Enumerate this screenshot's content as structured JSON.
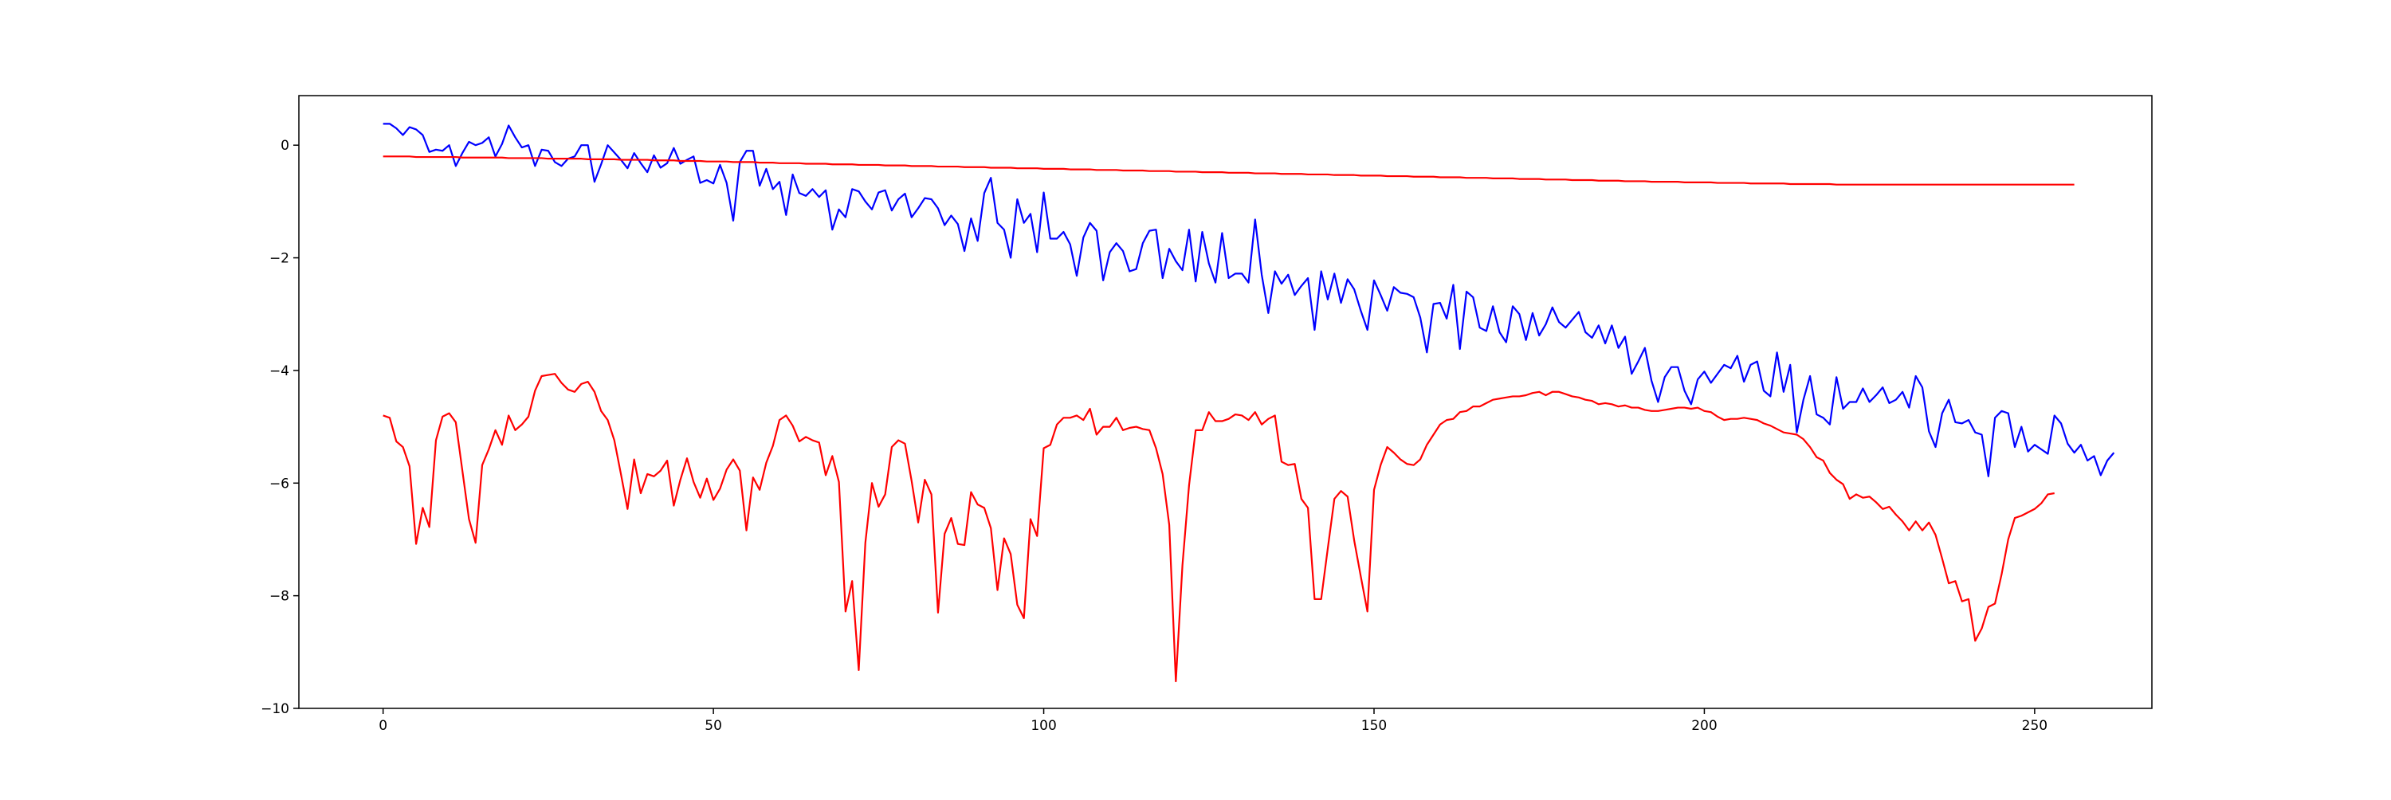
{
  "chart_data": {
    "type": "line",
    "title": "",
    "xlabel": "",
    "ylabel": "",
    "xlim": [
      -12.75,
      267.75
    ],
    "ylim": [
      -10,
      0.88
    ],
    "grid": false,
    "legend": "none",
    "x_ticks": [
      0,
      50,
      100,
      150,
      200,
      250
    ],
    "x_tick_labels": [
      "0",
      "50",
      "100",
      "150",
      "200",
      "250"
    ],
    "y_ticks": [
      0,
      -2,
      -4,
      -6,
      -8,
      -10
    ],
    "y_tick_labels": [
      "0",
      "−2",
      "−4",
      "−6",
      "−8",
      "−10"
    ],
    "colors": {
      "blue": "#0000ff",
      "red": "#ff0000",
      "axes": "#000000"
    },
    "series": [
      {
        "color": "#0000ff",
        "x_start": 0,
        "x_step": 1,
        "values": [
          0.38,
          0.38,
          0.3,
          0.18,
          0.32,
          0.28,
          0.18,
          -0.12,
          -0.08,
          -0.1,
          0.0,
          -0.37,
          -0.14,
          0.06,
          0.0,
          0.04,
          0.14,
          -0.2,
          0.02,
          0.35,
          0.14,
          -0.04,
          0.0,
          -0.37,
          -0.08,
          -0.1,
          -0.3,
          -0.37,
          -0.24,
          -0.2,
          0.0,
          0.0,
          -0.65,
          -0.34,
          0.0,
          -0.13,
          -0.26,
          -0.41,
          -0.14,
          -0.32,
          -0.48,
          -0.18,
          -0.4,
          -0.32,
          -0.05,
          -0.33,
          -0.26,
          -0.2,
          -0.67,
          -0.62,
          -0.68,
          -0.35,
          -0.67,
          -1.34,
          -0.3,
          -0.1,
          -0.1,
          -0.72,
          -0.42,
          -0.78,
          -0.65,
          -1.24,
          -0.52,
          -0.85,
          -0.9,
          -0.78,
          -0.92,
          -0.8,
          -1.5,
          -1.14,
          -1.28,
          -0.78,
          -0.82,
          -1.0,
          -1.14,
          -0.84,
          -0.8,
          -1.16,
          -0.96,
          -0.86,
          -1.28,
          -1.12,
          -0.94,
          -0.96,
          -1.12,
          -1.42,
          -1.25,
          -1.4,
          -1.88,
          -1.3,
          -1.7,
          -0.85,
          -0.58,
          -1.38,
          -1.5,
          -2.0,
          -0.96,
          -1.38,
          -1.22,
          -1.9,
          -0.84,
          -1.66,
          -1.66,
          -1.54,
          -1.76,
          -2.32,
          -1.64,
          -1.38,
          -1.52,
          -2.4,
          -1.9,
          -1.74,
          -1.88,
          -2.24,
          -2.2,
          -1.74,
          -1.52,
          -1.5,
          -2.36,
          -1.84,
          -2.06,
          -2.22,
          -1.5,
          -2.42,
          -1.54,
          -2.1,
          -2.44,
          -1.56,
          -2.36,
          -2.28,
          -2.28,
          -2.44,
          -1.32,
          -2.3,
          -2.98,
          -2.24,
          -2.46,
          -2.3,
          -2.66,
          -2.5,
          -2.36,
          -3.28,
          -2.24,
          -2.74,
          -2.28,
          -2.8,
          -2.38,
          -2.56,
          -2.94,
          -3.28,
          -2.4,
          -2.66,
          -2.94,
          -2.52,
          -2.62,
          -2.64,
          -2.7,
          -3.06,
          -3.68,
          -2.82,
          -2.8,
          -3.08,
          -2.48,
          -3.62,
          -2.6,
          -2.7,
          -3.24,
          -3.3,
          -2.86,
          -3.32,
          -3.5,
          -2.86,
          -3.0,
          -3.46,
          -2.98,
          -3.38,
          -3.18,
          -2.88,
          -3.14,
          -3.24,
          -3.1,
          -2.96,
          -3.32,
          -3.42,
          -3.2,
          -3.52,
          -3.2,
          -3.6,
          -3.4,
          -4.06,
          -3.84,
          -3.6,
          -4.18,
          -4.56,
          -4.12,
          -3.94,
          -3.94,
          -4.36,
          -4.6,
          -4.16,
          -4.02,
          -4.22,
          -4.06,
          -3.9,
          -3.96,
          -3.74,
          -4.2,
          -3.9,
          -3.84,
          -4.36,
          -4.46,
          -3.68,
          -4.38,
          -3.9,
          -5.1,
          -4.52,
          -4.1,
          -4.78,
          -4.84,
          -4.96,
          -4.12,
          -4.68,
          -4.56,
          -4.56,
          -4.32,
          -4.56,
          -4.44,
          -4.3,
          -4.58,
          -4.52,
          -4.38,
          -4.66,
          -4.1,
          -4.3,
          -5.08,
          -5.36,
          -4.76,
          -4.52,
          -4.92,
          -4.94,
          -4.88,
          -5.1,
          -5.14,
          -5.88,
          -4.84,
          -4.72,
          -4.76,
          -5.36,
          -5.0,
          -5.44,
          -5.32,
          -5.4,
          -5.48,
          -4.8,
          -4.94,
          -5.3,
          -5.46,
          -5.32,
          -5.6,
          -5.52,
          -5.86,
          -5.6,
          -5.46
        ]
      },
      {
        "color": "#ff0000",
        "x_start": 0,
        "x_step": 1,
        "values": [
          -4.8,
          -4.84,
          -5.26,
          -5.36,
          -5.7,
          -7.08,
          -6.44,
          -6.78,
          -5.24,
          -4.82,
          -4.76,
          -4.92,
          -5.78,
          -6.64,
          -7.06,
          -5.68,
          -5.4,
          -5.06,
          -5.32,
          -4.8,
          -5.06,
          -4.96,
          -4.82,
          -4.36,
          -4.1,
          -4.08,
          -4.06,
          -4.22,
          -4.34,
          -4.38,
          -4.24,
          -4.2,
          -4.38,
          -4.72,
          -4.88,
          -5.24,
          -5.84,
          -6.46,
          -5.58,
          -6.18,
          -5.84,
          -5.88,
          -5.78,
          -5.6,
          -6.4,
          -5.94,
          -5.56,
          -5.98,
          -6.26,
          -5.92,
          -6.3,
          -6.1,
          -5.76,
          -5.58,
          -5.78,
          -6.84,
          -5.9,
          -6.12,
          -5.64,
          -5.34,
          -4.88,
          -4.8,
          -4.98,
          -5.26,
          -5.18,
          -5.24,
          -5.28,
          -5.86,
          -5.52,
          -5.98,
          -8.28,
          -7.74,
          -9.32,
          -7.06,
          -6.0,
          -6.42,
          -6.2,
          -5.36,
          -5.24,
          -5.3,
          -5.96,
          -6.7,
          -5.94,
          -6.2,
          -8.3,
          -6.9,
          -6.62,
          -7.08,
          -7.1,
          -6.16,
          -6.38,
          -6.44,
          -6.8,
          -7.9,
          -6.98,
          -7.26,
          -8.16,
          -8.4,
          -6.64,
          -6.94,
          -5.38,
          -5.32,
          -4.96,
          -4.84,
          -4.84,
          -4.8,
          -4.88,
          -4.68,
          -5.14,
          -5.0,
          -5.0,
          -4.84,
          -5.06,
          -5.02,
          -5.0,
          -5.04,
          -5.06,
          -5.38,
          -5.84,
          -6.74,
          -9.52,
          -7.46,
          -6.04,
          -5.06,
          -5.06,
          -4.74,
          -4.9,
          -4.9,
          -4.86,
          -4.78,
          -4.8,
          -4.88,
          -4.74,
          -4.96,
          -4.86,
          -4.8,
          -5.62,
          -5.68,
          -5.66,
          -6.28,
          -6.44,
          -8.06,
          -8.06,
          -7.16,
          -6.28,
          -6.14,
          -6.24,
          -7.02,
          -7.66,
          -8.28,
          -6.12,
          -5.68,
          -5.36,
          -5.46,
          -5.58,
          -5.66,
          -5.68,
          -5.58,
          -5.32,
          -5.14,
          -4.96,
          -4.88,
          -4.86,
          -4.74,
          -4.72,
          -4.64,
          -4.64,
          -4.58,
          -4.52,
          -4.5,
          -4.48,
          -4.46,
          -4.46,
          -4.44,
          -4.4,
          -4.38,
          -4.44,
          -4.38,
          -4.38,
          -4.42,
          -4.46,
          -4.48,
          -4.52,
          -4.54,
          -4.6,
          -4.58,
          -4.6,
          -4.64,
          -4.62,
          -4.66,
          -4.66,
          -4.7,
          -4.72,
          -4.72,
          -4.7,
          -4.68,
          -4.66,
          -4.66,
          -4.68,
          -4.66,
          -4.72,
          -4.74,
          -4.82,
          -4.88,
          -4.86,
          -4.86,
          -4.84,
          -4.86,
          -4.88,
          -4.94,
          -4.98,
          -5.04,
          -5.1,
          -5.12,
          -5.14,
          -5.22,
          -5.36,
          -5.54,
          -5.6,
          -5.82,
          -5.94,
          -6.02,
          -6.28,
          -6.2,
          -6.26,
          -6.24,
          -6.34,
          -6.46,
          -6.42,
          -6.56,
          -6.68,
          -6.84,
          -6.68,
          -6.84,
          -6.7,
          -6.92,
          -7.34,
          -7.78,
          -7.74,
          -8.1,
          -8.06,
          -8.8,
          -8.58,
          -8.2,
          -8.14,
          -7.62,
          -7.0,
          -6.62,
          -6.58,
          -6.52,
          -6.46,
          -6.36,
          -6.2,
          -6.18
        ]
      },
      {
        "color": "#ff0000",
        "x_start": 0,
        "x_step": 1,
        "values": [
          -0.2,
          -0.2,
          -0.2,
          -0.2,
          -0.2,
          -0.21,
          -0.21,
          -0.21,
          -0.21,
          -0.21,
          -0.21,
          -0.21,
          -0.22,
          -0.22,
          -0.22,
          -0.22,
          -0.22,
          -0.22,
          -0.22,
          -0.23,
          -0.23,
          -0.23,
          -0.23,
          -0.23,
          -0.23,
          -0.24,
          -0.24,
          -0.24,
          -0.24,
          -0.24,
          -0.24,
          -0.25,
          -0.25,
          -0.25,
          -0.25,
          -0.25,
          -0.26,
          -0.26,
          -0.26,
          -0.26,
          -0.26,
          -0.27,
          -0.27,
          -0.27,
          -0.27,
          -0.28,
          -0.28,
          -0.28,
          -0.28,
          -0.29,
          -0.29,
          -0.29,
          -0.29,
          -0.3,
          -0.3,
          -0.3,
          -0.3,
          -0.31,
          -0.31,
          -0.31,
          -0.32,
          -0.32,
          -0.32,
          -0.32,
          -0.33,
          -0.33,
          -0.33,
          -0.33,
          -0.34,
          -0.34,
          -0.34,
          -0.34,
          -0.35,
          -0.35,
          -0.35,
          -0.35,
          -0.36,
          -0.36,
          -0.36,
          -0.36,
          -0.37,
          -0.37,
          -0.37,
          -0.37,
          -0.38,
          -0.38,
          -0.38,
          -0.38,
          -0.39,
          -0.39,
          -0.39,
          -0.39,
          -0.4,
          -0.4,
          -0.4,
          -0.4,
          -0.41,
          -0.41,
          -0.41,
          -0.41,
          -0.42,
          -0.42,
          -0.42,
          -0.42,
          -0.43,
          -0.43,
          -0.43,
          -0.43,
          -0.44,
          -0.44,
          -0.44,
          -0.44,
          -0.45,
          -0.45,
          -0.45,
          -0.45,
          -0.46,
          -0.46,
          -0.46,
          -0.46,
          -0.47,
          -0.47,
          -0.47,
          -0.47,
          -0.48,
          -0.48,
          -0.48,
          -0.48,
          -0.49,
          -0.49,
          -0.49,
          -0.49,
          -0.5,
          -0.5,
          -0.5,
          -0.5,
          -0.51,
          -0.51,
          -0.51,
          -0.51,
          -0.52,
          -0.52,
          -0.52,
          -0.52,
          -0.53,
          -0.53,
          -0.53,
          -0.53,
          -0.54,
          -0.54,
          -0.54,
          -0.54,
          -0.55,
          -0.55,
          -0.55,
          -0.55,
          -0.56,
          -0.56,
          -0.56,
          -0.56,
          -0.57,
          -0.57,
          -0.57,
          -0.57,
          -0.58,
          -0.58,
          -0.58,
          -0.58,
          -0.59,
          -0.59,
          -0.59,
          -0.59,
          -0.6,
          -0.6,
          -0.6,
          -0.6,
          -0.61,
          -0.61,
          -0.61,
          -0.61,
          -0.62,
          -0.62,
          -0.62,
          -0.62,
          -0.63,
          -0.63,
          -0.63,
          -0.63,
          -0.64,
          -0.64,
          -0.64,
          -0.64,
          -0.65,
          -0.65,
          -0.65,
          -0.65,
          -0.65,
          -0.66,
          -0.66,
          -0.66,
          -0.66,
          -0.66,
          -0.67,
          -0.67,
          -0.67,
          -0.67,
          -0.67,
          -0.68,
          -0.68,
          -0.68,
          -0.68,
          -0.68,
          -0.68,
          -0.69,
          -0.69,
          -0.69,
          -0.69,
          -0.69,
          -0.69,
          -0.69,
          -0.7,
          -0.7,
          -0.7,
          -0.7,
          -0.7,
          -0.7,
          -0.7,
          -0.7,
          -0.7,
          -0.7,
          -0.7,
          -0.7,
          -0.7,
          -0.7,
          -0.7,
          -0.7,
          -0.7,
          -0.7,
          -0.7,
          -0.7,
          -0.7,
          -0.7,
          -0.7,
          -0.7,
          -0.7,
          -0.7,
          -0.7,
          -0.7,
          -0.7,
          -0.7,
          -0.7,
          -0.7,
          -0.7,
          -0.7,
          -0.7,
          -0.7,
          -0.7
        ]
      }
    ]
  }
}
